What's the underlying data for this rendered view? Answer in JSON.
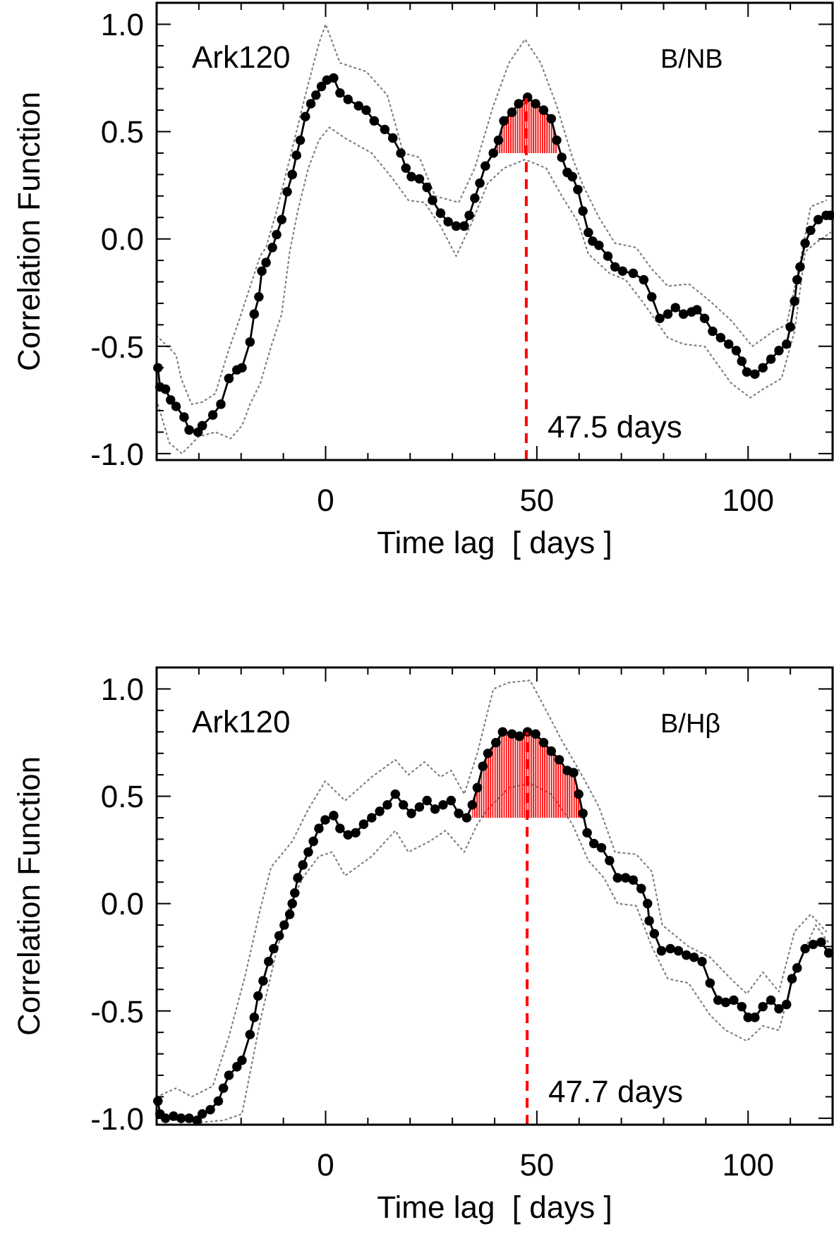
{
  "chart_data": [
    {
      "type": "line",
      "annotations": [
        "Ark120",
        "B/NB"
      ],
      "xlabel": "Time lag  [ days ]",
      "ylabel": "Correlation Function",
      "xlim": [
        -40,
        120
      ],
      "xticks": [
        {
          "value": -30,
          "label": null
        },
        {
          "value": -20,
          "label": null
        },
        {
          "value": -10,
          "label": null
        },
        0,
        {
          "value": 10,
          "label": null
        },
        {
          "value": 20,
          "label": null
        },
        {
          "value": 30,
          "label": null
        },
        {
          "value": 40,
          "label": null
        },
        50,
        {
          "value": 60,
          "label": null
        },
        {
          "value": 70,
          "label": null
        },
        {
          "value": 80,
          "label": null
        },
        {
          "value": 90,
          "label": null
        },
        100,
        {
          "value": 110,
          "label": null
        }
      ],
      "ylim": [
        -1.03,
        1.1
      ],
      "yticks": [
        {
          "value": -1,
          "label": "-1.0"
        },
        {
          "value": -0.9,
          "label": null
        },
        {
          "value": -0.8,
          "label": null
        },
        {
          "value": -0.7,
          "label": null
        },
        {
          "value": -0.6,
          "label": null
        },
        {
          "value": -0.5,
          "label": "-0.5"
        },
        {
          "value": -0.4,
          "label": null
        },
        {
          "value": -0.3,
          "label": null
        },
        {
          "value": -0.2,
          "label": null
        },
        {
          "value": -0.1,
          "label": null
        },
        {
          "value": 0,
          "label": "0.0"
        },
        {
          "value": 0.1,
          "label": null
        },
        {
          "value": 0.2,
          "label": null
        },
        {
          "value": 0.3,
          "label": null
        },
        {
          "value": 0.4,
          "label": null
        },
        {
          "value": 0.5,
          "label": "0.5"
        },
        {
          "value": 0.6,
          "label": null
        },
        {
          "value": 0.7,
          "label": null
        },
        {
          "value": 0.8,
          "label": null
        },
        {
          "value": 0.9,
          "label": null
        },
        {
          "value": 1,
          "label": "1.0"
        }
      ],
      "ref_lines": [
        {
          "axis": "x",
          "value": 47.5,
          "label": "47.5 days",
          "color": "#ff0000",
          "line_style": "dashed"
        }
      ],
      "series": [
        {
          "color": "#808080",
          "marker": "none",
          "line_style": "dotted",
          "x": [
            -40,
            -35.4,
            -34.2,
            -31.7,
            -29.2,
            -26.1,
            -23,
            -20.5,
            -18,
            -15.5,
            -14.1,
            -11.6,
            -7.9,
            -4.8,
            -1.6,
            0,
            3.4,
            9.6,
            14.6,
            18.4,
            22.2,
            25.9,
            31.5,
            35.3,
            39.7,
            43.4,
            47.2,
            50.9,
            54.7,
            58.4,
            60.9,
            64.7,
            68.5,
            73.5,
            77.2,
            81,
            86,
            91,
            96,
            101,
            106,
            109.1,
            112.3,
            114.8,
            118.5
          ],
          "values": [
            -0.45,
            -0.54,
            -0.65,
            -0.77,
            -0.76,
            -0.72,
            -0.52,
            -0.38,
            -0.23,
            -0.08,
            -0.04,
            0.13,
            0.42,
            0.67,
            0.91,
            1.0,
            0.82,
            0.78,
            0.67,
            0.4,
            0.38,
            0.2,
            0.17,
            0.33,
            0.62,
            0.82,
            0.93,
            0.82,
            0.62,
            0.38,
            0.25,
            0.1,
            -0.02,
            -0.04,
            -0.14,
            -0.22,
            -0.21,
            -0.29,
            -0.38,
            -0.5,
            -0.43,
            -0.4,
            -0.11,
            0.15,
            0.18
          ]
        },
        {
          "color": "#808080",
          "marker": "none",
          "line_style": "dotted",
          "x": [
            -40,
            -37,
            -34,
            -30,
            -26,
            -22.5,
            -19.8,
            -17.9,
            -15.4,
            -12.9,
            -10.4,
            -8.5,
            -6.6,
            -4.1,
            -1.6,
            0.9,
            4.6,
            10.9,
            15.9,
            19.6,
            23.4,
            27.2,
            30.9,
            34.7,
            38.4,
            42.2,
            47.2,
            52.2,
            55.9,
            59.7,
            62.2,
            67.2,
            71,
            75.3,
            81,
            84.7,
            89.7,
            95.9,
            100.5,
            103.5,
            107.9,
            111,
            113.5,
            115.9,
            119.5
          ],
          "values": [
            -0.75,
            -0.95,
            -1.0,
            -0.92,
            -0.9,
            -0.93,
            -0.87,
            -0.77,
            -0.67,
            -0.5,
            -0.35,
            -0.06,
            0.13,
            0.33,
            0.46,
            0.52,
            0.47,
            0.4,
            0.28,
            0.18,
            0.17,
            0.06,
            -0.08,
            0.08,
            0.26,
            0.33,
            0.37,
            0.33,
            0.2,
            0.08,
            -0.07,
            -0.16,
            -0.19,
            -0.3,
            -0.46,
            -0.49,
            -0.5,
            -0.67,
            -0.74,
            -0.7,
            -0.65,
            -0.43,
            -0.06,
            -0.02,
            0.03
          ]
        },
        {
          "color": "#000000",
          "marker": "circle",
          "line_style": "solid",
          "x": [
            -39.7,
            -39.2,
            -37.9,
            -36.7,
            -35.4,
            -33.5,
            -32.3,
            -30.2,
            -29.2,
            -26.7,
            -24.8,
            -22.9,
            -21,
            -19.8,
            -17.9,
            -16.9,
            -15.8,
            -15.1,
            -14.1,
            -12.6,
            -11.6,
            -10.4,
            -9.1,
            -7.9,
            -6.9,
            -6,
            -4.8,
            -3.5,
            -2.3,
            -1,
            0.3,
            1.9,
            3.4,
            5.3,
            7.8,
            9.6,
            11.5,
            14,
            15.9,
            17.8,
            19,
            20.3,
            22.2,
            24,
            25.3,
            27.2,
            29,
            30.9,
            32.8,
            34,
            35.3,
            36.5,
            37.8,
            39.7,
            40.9,
            42.2,
            44.1,
            45.7,
            47.8,
            49.7,
            51.6,
            53.4,
            54.7,
            55.9,
            57.2,
            58.4,
            59.7,
            60.9,
            62.2,
            63.2,
            64.7,
            66.8,
            68.5,
            70.3,
            72.8,
            75.3,
            77.2,
            79.1,
            81,
            82.8,
            84.7,
            86.6,
            87.9,
            89.7,
            91.6,
            93.5,
            95.4,
            97.2,
            98.5,
            99.7,
            101.6,
            103.5,
            105.4,
            107.3,
            109.1,
            110,
            111,
            111.6,
            112.3,
            113.5,
            114.8,
            116.6,
            118.5,
            119.5
          ],
          "values": [
            -0.6,
            -0.69,
            -0.7,
            -0.75,
            -0.78,
            -0.83,
            -0.89,
            -0.9,
            -0.87,
            -0.82,
            -0.77,
            -0.65,
            -0.61,
            -0.6,
            -0.48,
            -0.35,
            -0.27,
            -0.15,
            -0.11,
            -0.04,
            0.02,
            0.09,
            0.22,
            0.3,
            0.39,
            0.46,
            0.57,
            0.63,
            0.67,
            0.71,
            0.74,
            0.75,
            0.68,
            0.65,
            0.62,
            0.6,
            0.55,
            0.51,
            0.47,
            0.4,
            0.33,
            0.29,
            0.28,
            0.24,
            0.18,
            0.12,
            0.08,
            0.06,
            0.06,
            0.11,
            0.19,
            0.26,
            0.34,
            0.4,
            0.46,
            0.55,
            0.59,
            0.63,
            0.66,
            0.63,
            0.6,
            0.56,
            0.46,
            0.38,
            0.31,
            0.29,
            0.23,
            0.13,
            0.03,
            -0.01,
            -0.03,
            -0.08,
            -0.13,
            -0.15,
            -0.16,
            -0.19,
            -0.27,
            -0.37,
            -0.35,
            -0.32,
            -0.35,
            -0.34,
            -0.33,
            -0.37,
            -0.43,
            -0.46,
            -0.49,
            -0.52,
            -0.57,
            -0.62,
            -0.63,
            -0.6,
            -0.56,
            -0.52,
            -0.49,
            -0.41,
            -0.29,
            -0.19,
            -0.13,
            -0.02,
            0.04,
            0.09,
            0.11,
            0.11
          ],
          "lower": [
            null,
            null,
            null,
            null,
            null,
            null,
            null,
            null,
            null,
            null,
            null,
            null,
            null,
            null,
            null,
            null,
            null,
            null,
            null,
            null,
            null,
            null,
            null,
            null,
            null,
            null,
            null,
            null,
            null,
            null,
            null,
            null,
            null,
            null,
            null,
            null,
            null,
            null,
            null,
            null,
            null,
            null,
            null,
            null,
            null,
            null,
            null,
            null,
            null,
            null,
            null,
            null,
            null,
            0.4,
            0.4,
            0.4,
            0.4,
            0.4,
            0.4,
            0.4,
            0.4,
            0.4,
            0.4,
            null,
            null,
            null,
            null,
            null,
            null,
            null,
            null,
            null,
            null,
            null,
            null,
            null,
            null,
            null,
            null,
            null,
            null,
            null,
            null,
            null,
            null,
            null,
            null,
            null,
            null,
            null,
            null,
            null,
            null,
            null,
            null,
            null,
            null,
            null,
            null,
            null,
            null,
            null,
            null,
            null
          ],
          "upper": [
            null,
            null,
            null,
            null,
            null,
            null,
            null,
            null,
            null,
            null,
            null,
            null,
            null,
            null,
            null,
            null,
            null,
            null,
            null,
            null,
            null,
            null,
            null,
            null,
            null,
            null,
            null,
            null,
            null,
            null,
            null,
            null,
            null,
            null,
            null,
            null,
            null,
            null,
            null,
            null,
            null,
            null,
            null,
            null,
            null,
            null,
            null,
            null,
            null,
            null,
            null,
            null,
            null,
            0.4,
            0.46,
            0.55,
            0.59,
            0.63,
            0.66,
            0.63,
            0.6,
            0.56,
            0.46,
            null,
            null,
            null,
            null,
            null,
            null,
            null,
            null,
            null,
            null,
            null,
            null,
            null,
            null,
            null,
            null,
            null,
            null,
            null,
            null,
            null,
            null,
            null,
            null,
            null,
            null,
            null,
            null,
            null,
            null,
            null,
            null,
            null,
            null,
            null,
            null,
            null,
            null,
            null,
            null,
            null
          ]
        }
      ]
    },
    {
      "type": "line",
      "annotations": [
        "Ark120",
        "B/Hβ"
      ],
      "xlabel": "Time lag  [ days ]",
      "ylabel": "Correlation Function",
      "xlim": [
        -40,
        120
      ],
      "xticks": [
        {
          "value": -30,
          "label": null
        },
        {
          "value": -20,
          "label": null
        },
        {
          "value": -10,
          "label": null
        },
        0,
        {
          "value": 10,
          "label": null
        },
        {
          "value": 20,
          "label": null
        },
        {
          "value": 30,
          "label": null
        },
        {
          "value": 40,
          "label": null
        },
        50,
        {
          "value": 60,
          "label": null
        },
        {
          "value": 70,
          "label": null
        },
        {
          "value": 80,
          "label": null
        },
        {
          "value": 90,
          "label": null
        },
        100,
        {
          "value": 110,
          "label": null
        }
      ],
      "ylim": [
        -1.03,
        1.1
      ],
      "yticks": [
        {
          "value": -1,
          "label": "-1.0"
        },
        {
          "value": -0.9,
          "label": null
        },
        {
          "value": -0.8,
          "label": null
        },
        {
          "value": -0.7,
          "label": null
        },
        {
          "value": -0.6,
          "label": null
        },
        {
          "value": -0.5,
          "label": "-0.5"
        },
        {
          "value": -0.4,
          "label": null
        },
        {
          "value": -0.3,
          "label": null
        },
        {
          "value": -0.2,
          "label": null
        },
        {
          "value": -0.1,
          "label": null
        },
        {
          "value": 0,
          "label": "0.0"
        },
        {
          "value": 0.1,
          "label": null
        },
        {
          "value": 0.2,
          "label": null
        },
        {
          "value": 0.3,
          "label": null
        },
        {
          "value": 0.4,
          "label": null
        },
        {
          "value": 0.5,
          "label": "0.5"
        },
        {
          "value": 0.6,
          "label": null
        },
        {
          "value": 0.7,
          "label": null
        },
        {
          "value": 0.8,
          "label": null
        },
        {
          "value": 0.9,
          "label": null
        },
        {
          "value": 1,
          "label": "1.0"
        }
      ],
      "ref_lines": [
        {
          "axis": "x",
          "value": 47.7,
          "label": "47.7 days",
          "color": "#ff0000",
          "line_style": "dashed"
        }
      ],
      "series": [
        {
          "color": "#808080",
          "marker": "none",
          "line_style": "dotted",
          "x": [
            -40,
            -35.4,
            -31.7,
            -26.7,
            -22.9,
            -19.1,
            -15.4,
            -12.9,
            -7.9,
            -4.1,
            -0.1,
            4.6,
            10.9,
            16.5,
            19.6,
            23.4,
            27.2,
            29.7,
            32.8,
            35.9,
            39.7,
            43.4,
            48.4,
            52.2,
            55.9,
            60.9,
            64.7,
            68.5,
            73.5,
            77.2,
            79.7,
            85.9,
            91,
            95.9,
            99.7,
            103.5,
            107.3,
            111,
            114.8,
            118.5
          ],
          "values": [
            -0.9,
            -0.86,
            -0.9,
            -0.85,
            -0.62,
            -0.34,
            -0.02,
            0.17,
            0.29,
            0.44,
            0.57,
            0.48,
            0.59,
            0.67,
            0.6,
            0.66,
            0.59,
            0.62,
            0.51,
            0.7,
            1.0,
            1.03,
            1.04,
            0.9,
            0.76,
            0.59,
            0.45,
            0.24,
            0.23,
            0.15,
            -0.1,
            -0.2,
            -0.25,
            -0.35,
            -0.42,
            -0.32,
            -0.41,
            -0.13,
            -0.05,
            -0.13
          ]
        },
        {
          "color": "#808080",
          "marker": "none",
          "line_style": "dotted",
          "x": [
            -40,
            -30,
            -24.2,
            -19.8,
            -17.9,
            -15.4,
            -11.6,
            -8.5,
            -5.4,
            -1.6,
            1.5,
            4.6,
            10.9,
            16.5,
            19.6,
            24.6,
            28.4,
            32.8,
            35.9,
            38.4,
            43.4,
            48.4,
            53.4,
            58.4,
            62.2,
            65.9,
            69.1,
            73.5,
            77.2,
            81,
            85.9,
            91,
            94.7,
            99.7,
            103.5,
            107.3,
            111,
            116,
            119
          ],
          "values": [
            -1.0,
            -1.02,
            -1.01,
            -0.98,
            -0.79,
            -0.54,
            -0.22,
            -0.01,
            0.12,
            0.22,
            0.24,
            0.13,
            0.22,
            0.34,
            0.24,
            0.29,
            0.34,
            0.24,
            0.37,
            0.44,
            0.54,
            0.56,
            0.51,
            0.37,
            0.2,
            0.12,
            0.0,
            -0.01,
            -0.2,
            -0.35,
            -0.37,
            -0.52,
            -0.59,
            -0.64,
            -0.57,
            -0.59,
            -0.32,
            -0.1,
            -0.18
          ]
        },
        {
          "color": "#000000",
          "marker": "circle",
          "line_style": "solid",
          "x": [
            -39.7,
            -39.2,
            -37.9,
            -36,
            -34.2,
            -32.3,
            -30.4,
            -29.2,
            -27.3,
            -25.4,
            -24.2,
            -22.9,
            -21,
            -19.8,
            -17.9,
            -16.9,
            -16,
            -14.8,
            -13.5,
            -12.3,
            -11,
            -9.8,
            -8.5,
            -7.9,
            -7.3,
            -6.6,
            -5.4,
            -4.1,
            -2.9,
            -1.6,
            -0.1,
            1.9,
            3.4,
            5.3,
            7.1,
            9,
            10.9,
            12.8,
            14.6,
            16.5,
            18.4,
            20.3,
            22.2,
            24,
            25.9,
            27.8,
            29.7,
            31.5,
            33.4,
            34.7,
            35.9,
            37.2,
            38.4,
            40.3,
            41.9,
            44.1,
            45.9,
            47.8,
            49.7,
            51.6,
            53.4,
            55.3,
            57.2,
            58.7,
            59.9,
            60.9,
            61.9,
            63.5,
            65.3,
            67.2,
            69.1,
            71,
            72.8,
            74.7,
            76.2,
            76.6,
            77.8,
            79.5,
            81.6,
            83.5,
            85.4,
            87.2,
            89.1,
            91,
            92.9,
            94.7,
            96.6,
            98.5,
            100,
            101.6,
            103.5,
            105.4,
            107.3,
            109.1,
            110.4,
            111.6,
            113.5,
            115.4,
            117.3,
            119.1
          ],
          "values": [
            -0.92,
            -0.98,
            -1.0,
            -0.99,
            -1.0,
            -1.0,
            -1.01,
            -0.98,
            -0.96,
            -0.92,
            -0.86,
            -0.8,
            -0.76,
            -0.73,
            -0.61,
            -0.53,
            -0.43,
            -0.36,
            -0.27,
            -0.21,
            -0.15,
            -0.1,
            -0.05,
            0.0,
            0.05,
            0.12,
            0.18,
            0.24,
            0.29,
            0.35,
            0.39,
            0.41,
            0.35,
            0.32,
            0.33,
            0.37,
            0.4,
            0.43,
            0.46,
            0.51,
            0.46,
            0.42,
            0.45,
            0.48,
            0.44,
            0.46,
            0.48,
            0.42,
            0.4,
            0.46,
            0.54,
            0.64,
            0.7,
            0.75,
            0.8,
            0.79,
            0.78,
            0.8,
            0.79,
            0.75,
            0.71,
            0.67,
            0.62,
            0.61,
            0.51,
            0.42,
            0.33,
            0.28,
            0.26,
            0.2,
            0.12,
            0.12,
            0.11,
            0.07,
            0.0,
            -0.08,
            -0.14,
            -0.22,
            -0.21,
            -0.22,
            -0.24,
            -0.25,
            -0.27,
            -0.37,
            -0.45,
            -0.46,
            -0.45,
            -0.48,
            -0.53,
            -0.53,
            -0.48,
            -0.45,
            -0.49,
            -0.47,
            -0.35,
            -0.3,
            -0.21,
            -0.19,
            -0.18,
            -0.23
          ],
          "lower": [
            null,
            null,
            null,
            null,
            null,
            null,
            null,
            null,
            null,
            null,
            null,
            null,
            null,
            null,
            null,
            null,
            null,
            null,
            null,
            null,
            null,
            null,
            null,
            null,
            null,
            null,
            null,
            null,
            null,
            null,
            null,
            null,
            null,
            null,
            null,
            null,
            null,
            null,
            null,
            null,
            null,
            null,
            null,
            null,
            null,
            null,
            null,
            null,
            null,
            0.4,
            0.4,
            0.4,
            0.4,
            0.4,
            0.4,
            0.4,
            0.4,
            0.4,
            0.4,
            0.4,
            0.4,
            0.4,
            0.4,
            0.4,
            0.4,
            0.4,
            null,
            null,
            null,
            null,
            null,
            null,
            null,
            null,
            null,
            null,
            null,
            null,
            null,
            null,
            null,
            null,
            null,
            null,
            null,
            null,
            null,
            null,
            null,
            null,
            null,
            null,
            null,
            null,
            null,
            null,
            null,
            null,
            null,
            null
          ],
          "upper": [
            null,
            null,
            null,
            null,
            null,
            null,
            null,
            null,
            null,
            null,
            null,
            null,
            null,
            null,
            null,
            null,
            null,
            null,
            null,
            null,
            null,
            null,
            null,
            null,
            null,
            null,
            null,
            null,
            null,
            null,
            null,
            null,
            null,
            null,
            null,
            null,
            null,
            null,
            null,
            null,
            null,
            null,
            null,
            null,
            null,
            null,
            null,
            null,
            null,
            0.46,
            0.54,
            0.64,
            0.7,
            0.75,
            0.8,
            0.79,
            0.78,
            0.8,
            0.79,
            0.75,
            0.71,
            0.67,
            0.62,
            0.61,
            0.51,
            0.42,
            null,
            null,
            null,
            null,
            null,
            null,
            null,
            null,
            null,
            null,
            null,
            null,
            null,
            null,
            null,
            null,
            null,
            null,
            null,
            null,
            null,
            null,
            null,
            null,
            null,
            null,
            null,
            null,
            null,
            null,
            null,
            null,
            null,
            null
          ]
        }
      ]
    }
  ]
}
